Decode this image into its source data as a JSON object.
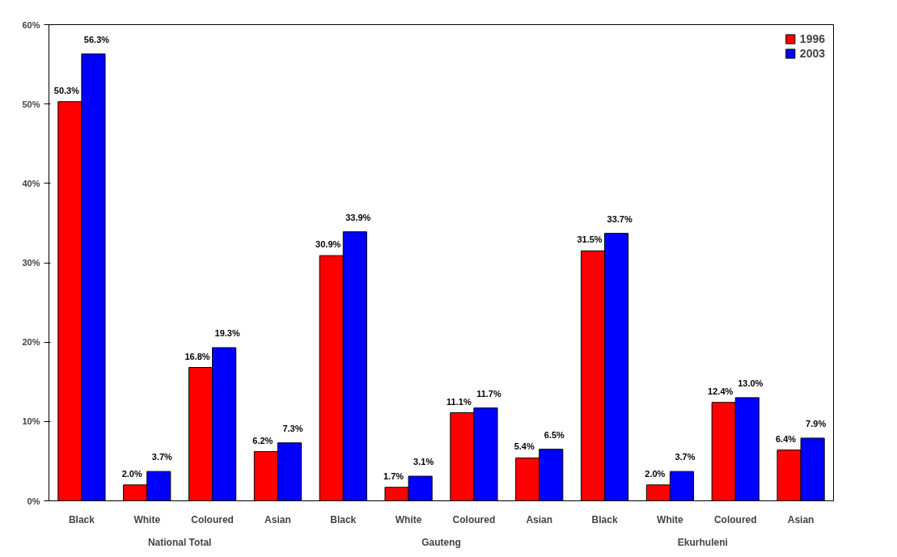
{
  "chart_data": {
    "type": "bar",
    "categories": [
      "Black",
      "White",
      "Coloured",
      "Asian",
      "Black",
      "White",
      "Coloured",
      "Asian",
      "Black",
      "White",
      "Coloured",
      "Asian"
    ],
    "annotations": [
      "National Total",
      "Gauteng",
      "Ekurhuleni"
    ],
    "series": [
      {
        "name": "1996",
        "color": "#ff0000",
        "values": [
          50.3,
          2.0,
          16.8,
          6.2,
          30.9,
          1.7,
          11.1,
          5.4,
          31.5,
          2.0,
          12.4,
          6.4
        ],
        "value_labels": [
          "50.3%",
          "2.0%",
          "16.8%",
          "6.2%",
          "30.9%",
          "1.7%",
          "11.1%",
          "5.4%",
          "31.5%",
          "2.0%",
          "12.4%",
          "6.4%"
        ]
      },
      {
        "name": "2003",
        "color": "#0000ff",
        "values": [
          56.3,
          3.7,
          19.3,
          7.3,
          33.9,
          3.1,
          11.7,
          6.5,
          33.7,
          3.7,
          13.0,
          7.9
        ],
        "value_labels": [
          "56.3%",
          "3.7%",
          "19.3%",
          "7.3%",
          "33.9%",
          "3.1%",
          "11.7%",
          "6.5%",
          "33.7%",
          "3.7%",
          "13.0%",
          "7.9%"
        ]
      }
    ],
    "ylim": [
      0,
      60
    ],
    "yticks": [
      {
        "value": 0,
        "label": "0%"
      },
      {
        "value": 10,
        "label": "10%"
      },
      {
        "value": 20,
        "label": "20%"
      },
      {
        "value": 30,
        "label": "30%"
      },
      {
        "value": 40,
        "label": "40%"
      },
      {
        "value": 50,
        "label": "50%"
      },
      {
        "value": 60,
        "label": "60%"
      }
    ],
    "grid": false,
    "legend": "top right"
  }
}
